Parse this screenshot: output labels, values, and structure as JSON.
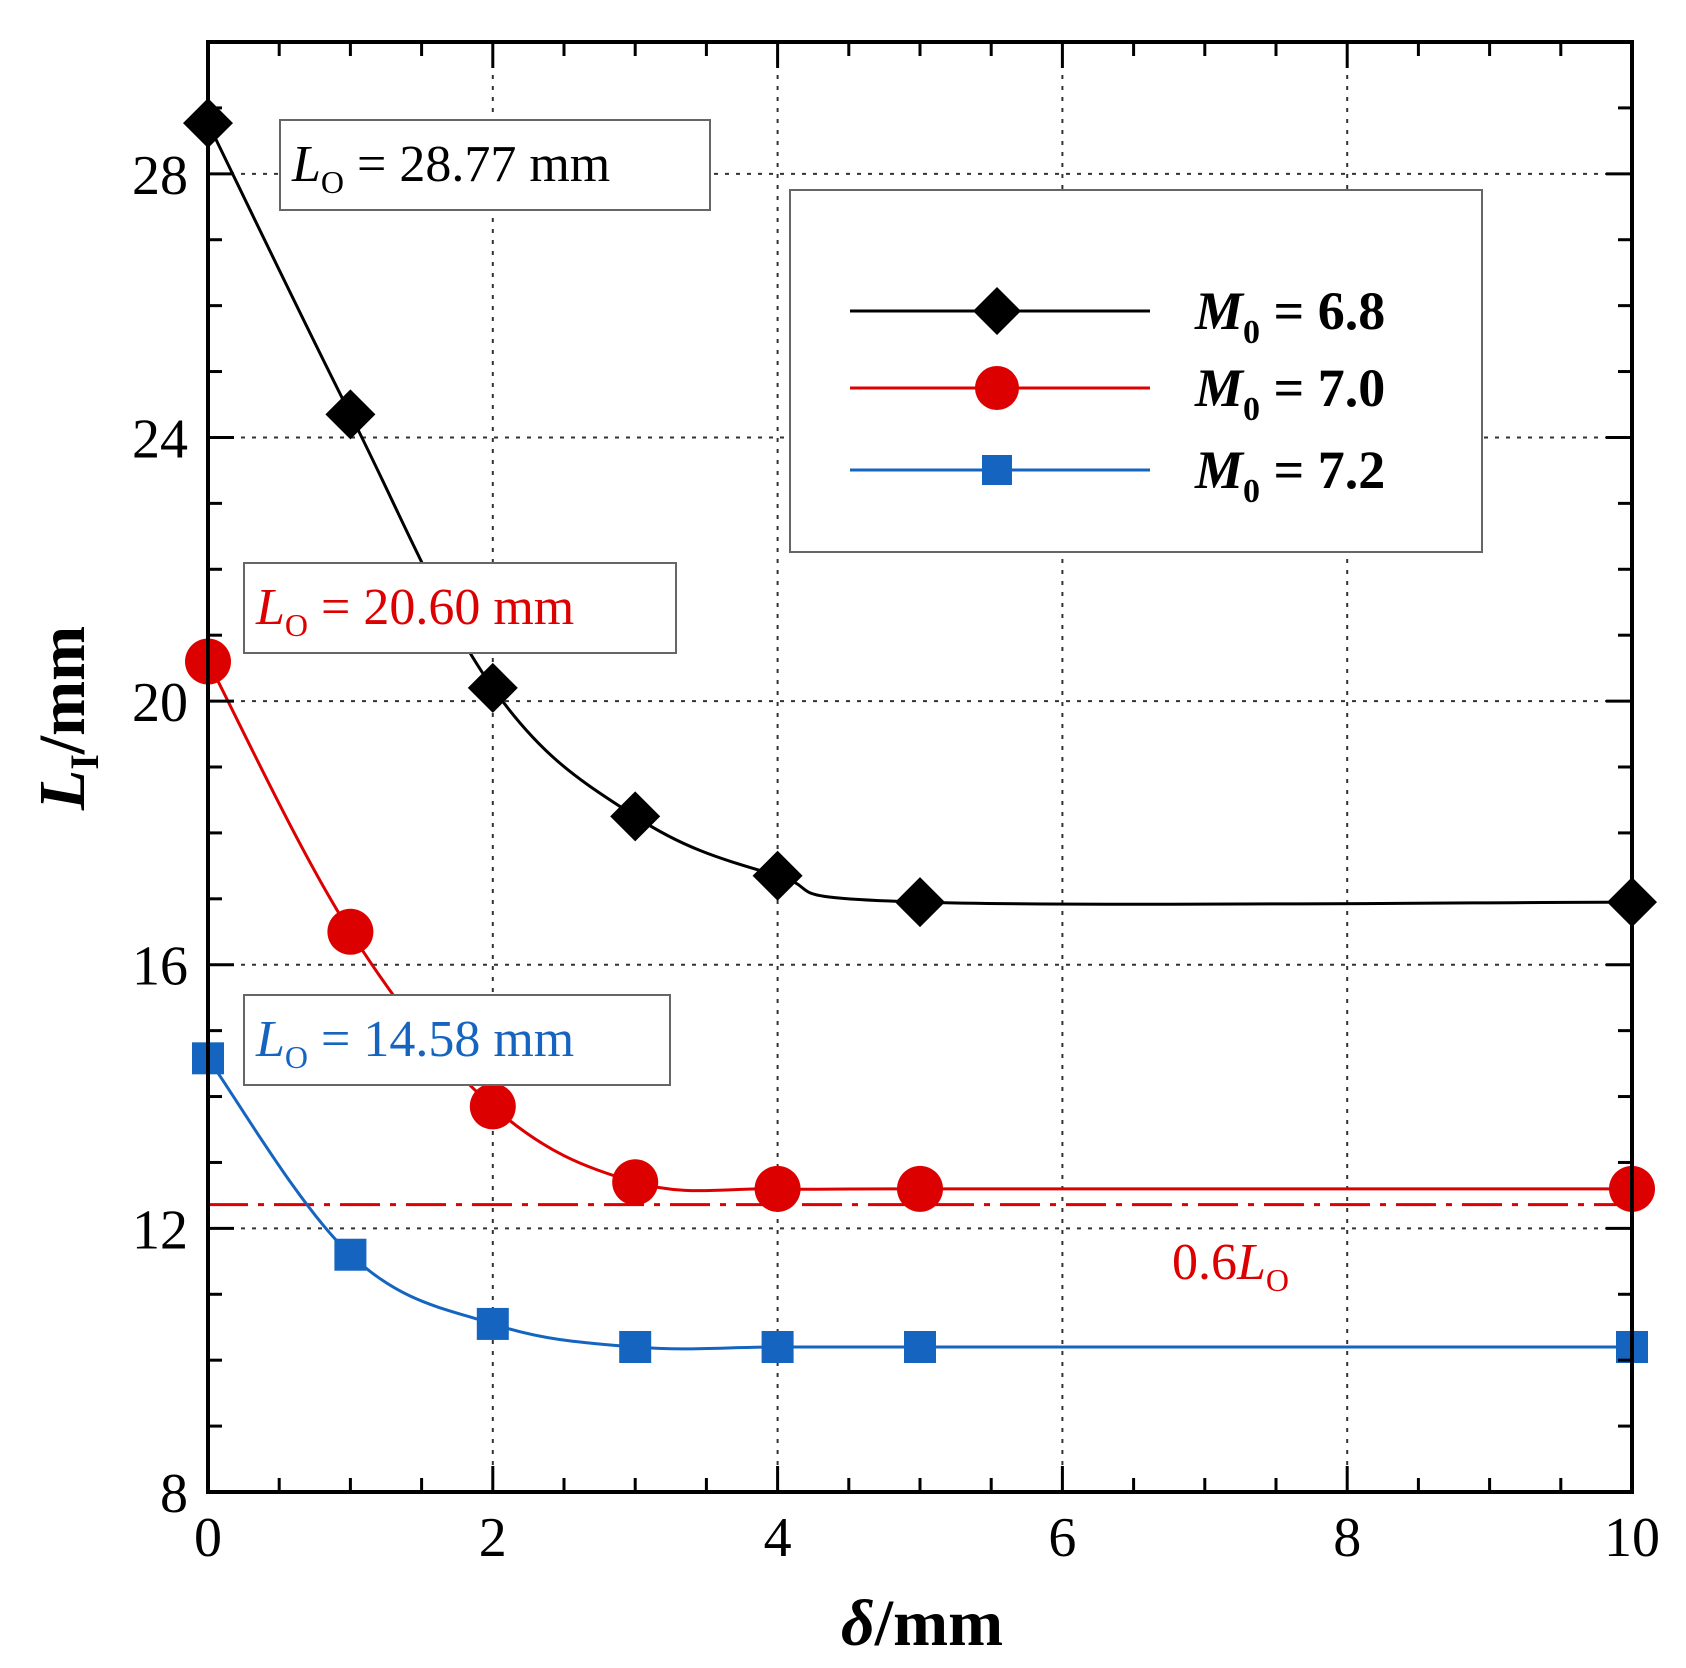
{
  "chart_data": {
    "type": "line",
    "title": "",
    "xlabel": {
      "main": "δ",
      "unit": "/mm"
    },
    "ylabel": {
      "main": "L",
      "sub": "I",
      "unit": "/mm"
    },
    "xlim": [
      0,
      10
    ],
    "ylim": [
      8,
      30
    ],
    "xticks": [
      0,
      2,
      4,
      6,
      8,
      10
    ],
    "yticks": [
      8,
      12,
      16,
      20,
      24,
      28
    ],
    "xtick_labels": [
      "0",
      "2",
      "4",
      "6",
      "8",
      "10"
    ],
    "ytick_labels": [
      "8",
      "12",
      "16",
      "20",
      "24",
      "28"
    ],
    "grid": true,
    "legend_position": "top-right",
    "series": [
      {
        "name": "M0 = 6.8",
        "label_main": "M",
        "label_sub": "0",
        "label_rest": " = 6.8",
        "color": "#000000",
        "marker": "diamond",
        "x": [
          0,
          1,
          2,
          3,
          4,
          5,
          10
        ],
        "y": [
          28.77,
          24.35,
          20.2,
          18.25,
          17.35,
          16.95,
          16.95
        ]
      },
      {
        "name": "M0 = 7.0",
        "label_main": "M",
        "label_sub": "0",
        "label_rest": " = 7.0",
        "color": "#dd0000",
        "marker": "circle",
        "x": [
          0,
          1,
          2,
          3,
          4,
          5,
          10
        ],
        "y": [
          20.6,
          16.5,
          13.85,
          12.7,
          12.6,
          12.6,
          12.6
        ]
      },
      {
        "name": "M0 = 7.2",
        "label_main": "M",
        "label_sub": "0",
        "label_rest": " = 7.2",
        "color": "#1565c0",
        "marker": "square",
        "x": [
          0,
          1,
          2,
          3,
          4,
          5,
          10
        ],
        "y": [
          14.58,
          11.6,
          10.55,
          10.2,
          10.2,
          10.2,
          10.2
        ]
      }
    ],
    "reference_line": {
      "y": 12.36,
      "color": "#dd0000",
      "style": "dash-dot",
      "label_prefix": "0.6",
      "label_main": "L",
      "label_sub": "O"
    },
    "annotations": [
      {
        "series_index": 0,
        "main": "L",
        "sub": "O",
        "text": " = 28.77 mm",
        "color": "#000000"
      },
      {
        "series_index": 1,
        "main": "L",
        "sub": "O",
        "text": " = 20.60 mm",
        "color": "#dd0000"
      },
      {
        "series_index": 2,
        "main": "L",
        "sub": "O",
        "text": " = 14.58 mm",
        "color": "#1565c0"
      }
    ]
  }
}
